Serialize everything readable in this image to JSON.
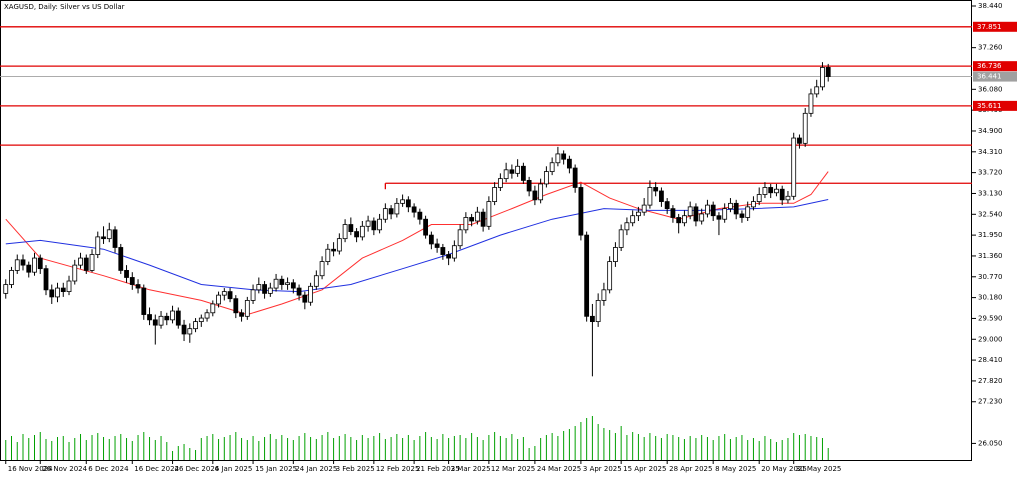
{
  "chart_data": {
    "type": "candlestick",
    "title": "XAGUSD, Daily: Silver vs US Dollar",
    "ohlc": [
      [
        30.3,
        30.7,
        30.15,
        30.55
      ],
      [
        30.55,
        31.05,
        30.45,
        30.95
      ],
      [
        30.95,
        31.4,
        30.85,
        31.25
      ],
      [
        31.25,
        31.4,
        30.95,
        31.1
      ],
      [
        31.1,
        31.2,
        30.75,
        30.9
      ],
      [
        30.9,
        31.45,
        30.8,
        31.3
      ],
      [
        31.3,
        31.4,
        30.85,
        31.0
      ],
      [
        31.0,
        31.1,
        30.25,
        30.4
      ],
      [
        30.4,
        30.55,
        30.0,
        30.2
      ],
      [
        30.2,
        30.6,
        30.05,
        30.45
      ],
      [
        30.45,
        30.6,
        30.2,
        30.35
      ],
      [
        30.35,
        30.8,
        30.25,
        30.65
      ],
      [
        30.65,
        31.25,
        30.55,
        31.1
      ],
      [
        31.1,
        31.45,
        31.0,
        31.3
      ],
      [
        31.3,
        31.4,
        30.85,
        30.95
      ],
      [
        30.95,
        31.55,
        30.9,
        31.4
      ],
      [
        31.4,
        32.05,
        31.3,
        31.9
      ],
      [
        31.9,
        32.2,
        31.7,
        31.85
      ],
      [
        31.85,
        32.3,
        31.75,
        32.1
      ],
      [
        32.1,
        32.2,
        31.45,
        31.6
      ],
      [
        31.6,
        31.7,
        30.85,
        30.95
      ],
      [
        30.95,
        31.1,
        30.6,
        30.75
      ],
      [
        30.75,
        30.9,
        30.4,
        30.55
      ],
      [
        30.55,
        30.7,
        30.3,
        30.45
      ],
      [
        30.45,
        30.55,
        29.55,
        29.7
      ],
      [
        29.7,
        29.9,
        29.4,
        29.55
      ],
      [
        29.55,
        29.7,
        28.85,
        29.4
      ],
      [
        29.4,
        29.8,
        29.3,
        29.65
      ],
      [
        29.65,
        29.75,
        29.4,
        29.55
      ],
      [
        29.55,
        29.95,
        29.45,
        29.8
      ],
      [
        29.8,
        29.9,
        29.3,
        29.4
      ],
      [
        29.4,
        29.55,
        28.95,
        29.15
      ],
      [
        29.15,
        29.45,
        28.9,
        29.3
      ],
      [
        29.3,
        29.6,
        29.2,
        29.5
      ],
      [
        29.5,
        29.7,
        29.35,
        29.6
      ],
      [
        29.6,
        29.85,
        29.5,
        29.75
      ],
      [
        29.75,
        30.1,
        29.65,
        30.0
      ],
      [
        30.0,
        30.35,
        29.9,
        30.25
      ],
      [
        30.25,
        30.45,
        30.1,
        30.35
      ],
      [
        30.35,
        30.45,
        30.05,
        30.15
      ],
      [
        30.15,
        30.25,
        29.6,
        29.75
      ],
      [
        29.75,
        29.85,
        29.5,
        29.65
      ],
      [
        29.65,
        30.2,
        29.55,
        30.1
      ],
      [
        30.1,
        30.55,
        30.0,
        30.4
      ],
      [
        30.4,
        30.75,
        30.3,
        30.55
      ],
      [
        30.55,
        30.65,
        30.15,
        30.3
      ],
      [
        30.3,
        30.6,
        30.2,
        30.45
      ],
      [
        30.45,
        30.85,
        30.35,
        30.7
      ],
      [
        30.7,
        30.8,
        30.4,
        30.55
      ],
      [
        30.55,
        30.75,
        30.4,
        30.6
      ],
      [
        30.6,
        30.7,
        30.3,
        30.45
      ],
      [
        30.45,
        30.55,
        30.1,
        30.25
      ],
      [
        30.25,
        30.35,
        29.85,
        30.05
      ],
      [
        30.05,
        30.6,
        29.95,
        30.5
      ],
      [
        30.5,
        30.95,
        30.4,
        30.8
      ],
      [
        30.8,
        31.35,
        30.7,
        31.2
      ],
      [
        31.2,
        31.7,
        31.1,
        31.55
      ],
      [
        31.55,
        31.75,
        31.35,
        31.5
      ],
      [
        31.5,
        32.0,
        31.4,
        31.85
      ],
      [
        31.85,
        32.4,
        31.75,
        32.25
      ],
      [
        32.25,
        32.45,
        31.95,
        32.05
      ],
      [
        32.05,
        32.15,
        31.75,
        31.9
      ],
      [
        31.9,
        32.35,
        31.8,
        32.2
      ],
      [
        32.2,
        32.5,
        32.05,
        32.35
      ],
      [
        32.35,
        32.45,
        31.95,
        32.1
      ],
      [
        32.1,
        32.55,
        32.0,
        32.4
      ],
      [
        32.4,
        32.85,
        32.3,
        32.7
      ],
      [
        32.7,
        32.8,
        32.4,
        32.55
      ],
      [
        32.55,
        33.0,
        32.45,
        32.85
      ],
      [
        32.85,
        33.1,
        32.75,
        32.95
      ],
      [
        32.95,
        33.05,
        32.6,
        32.75
      ],
      [
        32.75,
        32.85,
        32.45,
        32.6
      ],
      [
        32.6,
        32.7,
        32.25,
        32.4
      ],
      [
        32.4,
        32.5,
        31.85,
        31.95
      ],
      [
        31.95,
        32.05,
        31.55,
        31.7
      ],
      [
        31.7,
        31.85,
        31.45,
        31.6
      ],
      [
        31.6,
        31.7,
        31.25,
        31.4
      ],
      [
        31.4,
        31.5,
        31.1,
        31.3
      ],
      [
        31.3,
        31.8,
        31.2,
        31.65
      ],
      [
        31.65,
        32.25,
        31.55,
        32.1
      ],
      [
        32.1,
        32.6,
        32.0,
        32.45
      ],
      [
        32.45,
        32.55,
        32.2,
        32.35
      ],
      [
        32.35,
        32.75,
        32.25,
        32.6
      ],
      [
        32.6,
        32.7,
        32.05,
        32.2
      ],
      [
        32.2,
        33.05,
        32.1,
        32.9
      ],
      [
        32.9,
        33.45,
        32.8,
        33.3
      ],
      [
        33.3,
        33.7,
        33.2,
        33.55
      ],
      [
        33.55,
        34.0,
        33.45,
        33.8
      ],
      [
        33.8,
        33.95,
        33.55,
        33.7
      ],
      [
        33.7,
        34.1,
        33.6,
        33.9
      ],
      [
        33.9,
        34.0,
        33.4,
        33.5
      ],
      [
        33.5,
        33.6,
        33.05,
        33.2
      ],
      [
        33.2,
        33.35,
        32.8,
        32.95
      ],
      [
        32.95,
        33.55,
        32.85,
        33.4
      ],
      [
        33.4,
        33.9,
        33.3,
        33.75
      ],
      [
        33.75,
        34.15,
        33.65,
        34.0
      ],
      [
        34.0,
        34.45,
        33.9,
        34.25
      ],
      [
        34.25,
        34.35,
        33.95,
        34.1
      ],
      [
        34.1,
        34.2,
        33.7,
        33.85
      ],
      [
        33.85,
        33.95,
        33.15,
        33.3
      ],
      [
        33.3,
        33.4,
        31.8,
        31.95
      ],
      [
        31.95,
        32.05,
        29.5,
        29.65
      ],
      [
        29.65,
        30.0,
        27.95,
        29.5
      ],
      [
        29.5,
        30.3,
        29.35,
        30.1
      ],
      [
        30.1,
        30.6,
        29.95,
        30.4
      ],
      [
        30.4,
        31.35,
        30.3,
        31.2
      ],
      [
        31.2,
        31.75,
        31.05,
        31.6
      ],
      [
        31.6,
        32.25,
        31.5,
        32.1
      ],
      [
        32.1,
        32.45,
        31.95,
        32.3
      ],
      [
        32.3,
        32.65,
        32.2,
        32.5
      ],
      [
        32.5,
        32.75,
        32.35,
        32.6
      ],
      [
        32.6,
        33.0,
        32.5,
        32.8
      ],
      [
        32.8,
        33.5,
        32.7,
        33.3
      ],
      [
        33.3,
        33.45,
        33.05,
        33.2
      ],
      [
        33.2,
        33.3,
        32.75,
        32.9
      ],
      [
        32.9,
        33.0,
        32.55,
        32.7
      ],
      [
        32.7,
        32.8,
        32.3,
        32.45
      ],
      [
        32.45,
        32.55,
        32.0,
        32.3
      ],
      [
        32.3,
        32.65,
        32.2,
        32.5
      ],
      [
        32.5,
        32.9,
        32.4,
        32.75
      ],
      [
        32.75,
        32.85,
        32.2,
        32.35
      ],
      [
        32.35,
        32.7,
        32.25,
        32.55
      ],
      [
        32.55,
        32.95,
        32.45,
        32.8
      ],
      [
        32.8,
        32.9,
        32.35,
        32.5
      ],
      [
        32.5,
        32.6,
        31.95,
        32.4
      ],
      [
        32.4,
        32.85,
        32.3,
        32.7
      ],
      [
        32.7,
        33.0,
        32.6,
        32.85
      ],
      [
        32.85,
        32.95,
        32.4,
        32.55
      ],
      [
        32.55,
        32.65,
        32.3,
        32.45
      ],
      [
        32.45,
        32.9,
        32.35,
        32.75
      ],
      [
        32.75,
        33.05,
        32.65,
        32.9
      ],
      [
        32.9,
        33.3,
        32.8,
        33.1
      ],
      [
        33.1,
        33.45,
        33.0,
        33.3
      ],
      [
        33.3,
        33.4,
        33.0,
        33.15
      ],
      [
        33.15,
        33.4,
        33.05,
        33.25
      ],
      [
        33.25,
        33.35,
        32.8,
        32.95
      ],
      [
        32.95,
        33.2,
        32.85,
        33.05
      ],
      [
        33.05,
        34.85,
        32.95,
        34.7
      ],
      [
        34.7,
        34.8,
        34.4,
        34.55
      ],
      [
        34.55,
        35.55,
        34.45,
        35.4
      ],
      [
        35.4,
        36.1,
        35.3,
        35.95
      ],
      [
        35.95,
        36.35,
        35.85,
        36.15
      ],
      [
        36.15,
        36.85,
        36.05,
        36.7
      ],
      [
        36.7,
        36.8,
        36.3,
        36.441
      ]
    ],
    "volume": [
      20,
      24,
      18,
      26,
      22,
      25,
      28,
      21,
      19,
      23,
      24,
      18,
      22,
      26,
      20,
      25,
      27,
      23,
      21,
      24,
      26,
      22,
      19,
      25,
      28,
      23,
      20,
      24,
      18,
      9,
      14,
      16,
      12,
      10,
      22,
      24,
      26,
      21,
      23,
      25,
      28,
      22,
      20,
      24,
      19,
      23,
      26,
      21,
      25,
      22,
      20,
      24,
      27,
      23,
      21,
      25,
      28,
      22,
      24,
      26,
      23,
      20,
      25,
      22,
      24,
      27,
      21,
      23,
      26,
      22,
      25,
      20,
      24,
      28,
      23,
      21,
      26,
      22,
      24,
      25,
      22,
      27,
      23,
      20,
      25,
      28,
      24,
      22,
      26,
      21,
      23,
      12,
      14,
      22,
      25,
      27,
      24,
      29,
      31,
      34,
      38,
      42,
      44,
      36,
      32,
      30,
      27,
      34,
      25,
      28,
      26,
      23,
      27,
      24,
      22,
      26,
      25,
      23,
      21,
      24,
      22,
      25,
      23,
      20,
      24,
      26,
      21,
      23,
      25,
      20,
      22,
      19,
      24,
      21,
      18,
      20,
      22,
      27,
      25,
      26,
      24,
      23,
      22,
      12
    ],
    "volume_color": "#00a000",
    "series": [
      {
        "color": "#ff3030",
        "x": [
          0,
          6,
          17,
          25,
          34,
          42,
          48,
          55,
          62,
          69,
          74,
          81,
          88,
          94,
          100,
          105,
          110,
          117,
          124,
          131,
          137,
          140,
          143
        ],
        "values": [
          32.4,
          31.3,
          30.8,
          30.4,
          30.1,
          29.7,
          30.0,
          30.4,
          31.3,
          31.8,
          32.25,
          32.25,
          32.7,
          33.1,
          33.45,
          33.0,
          32.7,
          32.4,
          32.7,
          32.85,
          32.85,
          33.1,
          33.75
        ]
      },
      {
        "color": "#2030e0",
        "x": [
          0,
          6,
          17,
          25,
          34,
          43,
          51,
          60,
          69,
          77,
          86,
          95,
          104,
          112,
          121,
          130,
          137,
          143
        ],
        "values": [
          31.7,
          31.8,
          31.55,
          31.1,
          30.55,
          30.4,
          30.35,
          30.55,
          31.0,
          31.4,
          31.95,
          32.4,
          32.7,
          32.65,
          32.65,
          32.7,
          32.75,
          32.96
        ]
      }
    ],
    "levels": [
      {
        "value": 37.851,
        "label": "37.851",
        "color": "#e00000"
      },
      {
        "value": 36.736,
        "label": "36.736",
        "color": "#e00000"
      },
      {
        "value": 35.611,
        "label": "35.611",
        "color": "#e00000"
      },
      {
        "value": 34.5,
        "color": "#e00000"
      },
      {
        "value": 33.42,
        "x_start": 66,
        "color": "#e00000"
      }
    ],
    "current_price": {
      "value": 36.441,
      "label": "36.441",
      "color": "#a0a0a0"
    },
    "ylim": [
      25.58,
      38.61
    ],
    "yticks": [
      {
        "value": 38.44,
        "label": "38.440"
      },
      {
        "value": 37.26,
        "label": "37.260"
      },
      {
        "value": 36.08,
        "label": "36.080"
      },
      {
        "value": 35.49,
        "label": "35.490"
      },
      {
        "value": 34.9,
        "label": "34.900"
      },
      {
        "value": 34.31,
        "label": "34.310"
      },
      {
        "value": 33.72,
        "label": "33.720"
      },
      {
        "value": 33.13,
        "label": "33.130"
      },
      {
        "value": 32.54,
        "label": "32.540"
      },
      {
        "value": 31.95,
        "label": "31.950"
      },
      {
        "value": 31.36,
        "label": "31.360"
      },
      {
        "value": 30.77,
        "label": "30.770"
      },
      {
        "value": 30.18,
        "label": "30.180"
      },
      {
        "value": 29.59,
        "label": "29.590"
      },
      {
        "value": 29.0,
        "label": "29.000"
      },
      {
        "value": 28.41,
        "label": "28.410"
      },
      {
        "value": 27.82,
        "label": "27.820"
      },
      {
        "value": 27.23,
        "label": "27.230"
      },
      {
        "value": 26.05,
        "label": "26.050"
      }
    ],
    "xlim": [
      -1,
      168
    ],
    "xticks": [
      {
        "value": 0,
        "label": "16 Nov 2024"
      },
      {
        "value": 6,
        "label": "26 Nov 2024"
      },
      {
        "value": 14,
        "label": "6 Dec 2024"
      },
      {
        "value": 22,
        "label": "16 Dec 2024"
      },
      {
        "value": 29,
        "label": "26 Dec 2024"
      },
      {
        "value": 36,
        "label": "6 Jan 2025"
      },
      {
        "value": 43,
        "label": "15 Jan 2025"
      },
      {
        "value": 50,
        "label": "24 Jan 2025"
      },
      {
        "value": 57,
        "label": "3 Feb 2025"
      },
      {
        "value": 64,
        "label": "12 Feb 2025"
      },
      {
        "value": 71,
        "label": "21 Feb 2025"
      },
      {
        "value": 77,
        "label": "3 Mar 2025"
      },
      {
        "value": 84,
        "label": "12 Mar 2025"
      },
      {
        "value": 92,
        "label": "24 Mar 2025"
      },
      {
        "value": 100,
        "label": "3 Apr 2025"
      },
      {
        "value": 107,
        "label": "15 Apr 2025"
      },
      {
        "value": 115,
        "label": "28 Apr 2025"
      },
      {
        "value": 123,
        "label": "8 May 2025"
      },
      {
        "value": 131,
        "label": "20 May 2025"
      },
      {
        "value": 137,
        "label": "30 May 2025"
      }
    ]
  }
}
